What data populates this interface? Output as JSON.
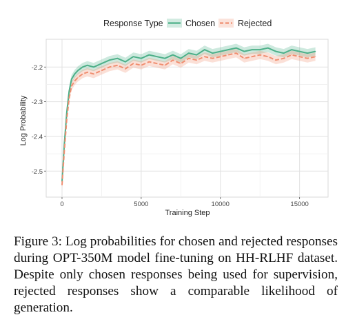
{
  "chart_data": {
    "type": "line",
    "legend_title": "Response Type",
    "legend_position": "top",
    "grid": true,
    "xlabel": "Training Step",
    "ylabel": "Log Probability",
    "xlim": [
      -1000,
      16800
    ],
    "ylim": [
      -2.575,
      -2.12
    ],
    "x_ticks": [
      0,
      5000,
      10000,
      15000
    ],
    "x_tick_labels": [
      "0",
      "5000",
      "10000",
      "15000"
    ],
    "y_ticks": [
      -2.5,
      -2.4,
      -2.3,
      -2.2
    ],
    "y_tick_labels": [
      "-2.5",
      "-2.4",
      "-2.3",
      "-2.2"
    ],
    "series": [
      {
        "name": "Chosen",
        "color": "#4daf88",
        "line_style": "solid",
        "band_halfwidth": 0.012,
        "x": [
          0,
          150,
          300,
          450,
          600,
          800,
          1000,
          1300,
          1600,
          2000,
          2500,
          3000,
          3500,
          4000,
          4500,
          5000,
          5500,
          6000,
          6500,
          7000,
          7500,
          8000,
          8500,
          9000,
          9500,
          10000,
          10500,
          11000,
          11500,
          12000,
          12500,
          13000,
          13500,
          14000,
          14500,
          15000,
          15500,
          16000
        ],
        "values": [
          -2.53,
          -2.42,
          -2.33,
          -2.27,
          -2.235,
          -2.22,
          -2.21,
          -2.2,
          -2.195,
          -2.2,
          -2.19,
          -2.18,
          -2.175,
          -2.185,
          -2.17,
          -2.175,
          -2.165,
          -2.17,
          -2.175,
          -2.165,
          -2.175,
          -2.16,
          -2.165,
          -2.15,
          -2.16,
          -2.155,
          -2.15,
          -2.145,
          -2.155,
          -2.15,
          -2.15,
          -2.145,
          -2.155,
          -2.16,
          -2.15,
          -2.155,
          -2.16,
          -2.155
        ]
      },
      {
        "name": "Rejected",
        "color": "#f08e70",
        "line_style": "dashed",
        "band_halfwidth": 0.012,
        "x": [
          0,
          150,
          300,
          450,
          600,
          800,
          1000,
          1300,
          1600,
          2000,
          2500,
          3000,
          3500,
          4000,
          4500,
          5000,
          5500,
          6000,
          6500,
          7000,
          7500,
          8000,
          8500,
          9000,
          9500,
          10000,
          10500,
          11000,
          11500,
          12000,
          12500,
          13000,
          13500,
          14000,
          14500,
          15000,
          15500,
          16000
        ],
        "values": [
          -2.54,
          -2.44,
          -2.35,
          -2.29,
          -2.255,
          -2.24,
          -2.23,
          -2.22,
          -2.215,
          -2.22,
          -2.21,
          -2.2,
          -2.195,
          -2.205,
          -2.19,
          -2.195,
          -2.185,
          -2.19,
          -2.195,
          -2.18,
          -2.19,
          -2.175,
          -2.18,
          -2.17,
          -2.175,
          -2.17,
          -2.165,
          -2.16,
          -2.175,
          -2.17,
          -2.165,
          -2.17,
          -2.18,
          -2.175,
          -2.165,
          -2.17,
          -2.175,
          -2.17
        ]
      }
    ]
  },
  "caption": "Figure 3: Log probabilities for chosen and rejected responses during OPT-350M model fine-tuning on HH-RLHF dataset. Despite only chosen responses being used for supervision, rejected responses show a comparable likelihood of generation."
}
